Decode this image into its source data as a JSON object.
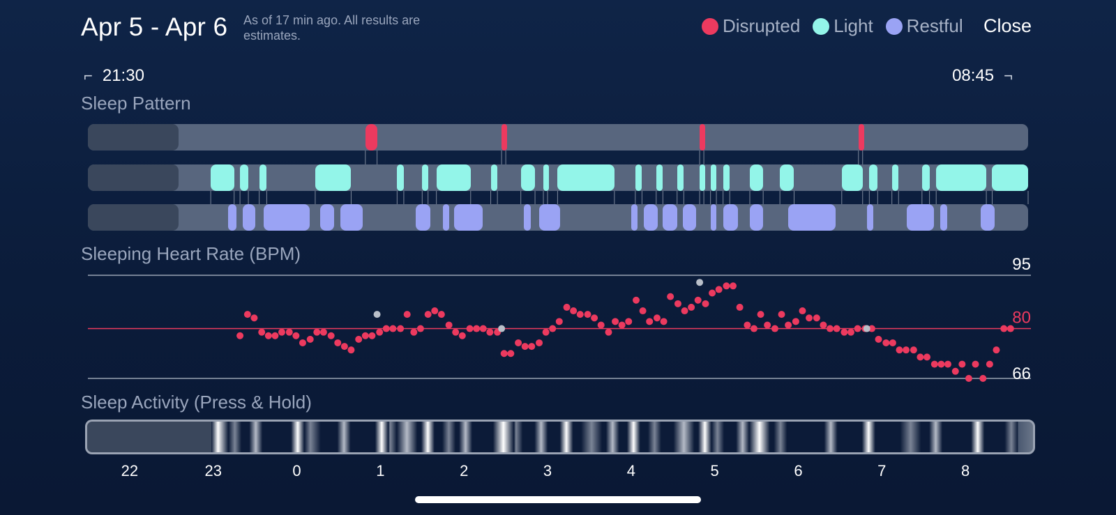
{
  "header": {
    "title": "Apr 5 - Apr 6",
    "subtitle": "As of 17 min ago. All results are estimates.",
    "close_label": "Close"
  },
  "legend": [
    {
      "label": "Disrupted",
      "color": "#ec3a5f"
    },
    {
      "label": "Light",
      "color": "#93f5e9"
    },
    {
      "label": "Restful",
      "color": "#9aa3f4"
    }
  ],
  "time_range": {
    "start": "21:30",
    "end": "08:45",
    "start_icon": "bracket-start-icon",
    "end_icon": "bracket-end-icon"
  },
  "sections": {
    "sleep_pattern": "Sleep Pattern",
    "heart_rate": "Sleeping Heart Rate (BPM)",
    "activity": "Sleep Activity (Press & Hold)"
  },
  "colors": {
    "disrupted": "#ec3a5f",
    "light": "#93f5e9",
    "restful": "#9aa3f4",
    "track": "#58667e",
    "track_pre": "#3a475c"
  },
  "sleep_pattern": {
    "axis_hours": [
      21.5,
      8.75
    ],
    "tracking_start_hour": 22.97,
    "disrupted": [
      [
        0.82,
        0.96
      ],
      [
        2.45,
        2.5
      ],
      [
        4.82,
        4.87
      ],
      [
        6.72,
        6.77
      ]
    ],
    "light": [
      [
        22.97,
        23.25
      ],
      [
        23.32,
        23.42
      ],
      [
        23.55,
        23.64
      ],
      [
        0.22,
        0.65
      ],
      [
        1.2,
        1.28
      ],
      [
        1.5,
        1.57
      ],
      [
        1.67,
        2.08
      ],
      [
        2.32,
        2.4
      ],
      [
        2.68,
        2.85
      ],
      [
        2.95,
        3.0
      ],
      [
        3.12,
        3.8
      ],
      [
        4.05,
        4.13
      ],
      [
        4.3,
        4.38
      ],
      [
        4.55,
        4.63
      ],
      [
        4.82,
        4.87
      ],
      [
        4.95,
        5.02
      ],
      [
        5.1,
        5.18
      ],
      [
        5.42,
        5.58
      ],
      [
        5.78,
        5.95
      ],
      [
        6.52,
        6.77
      ],
      [
        6.85,
        6.95
      ],
      [
        7.12,
        7.2
      ],
      [
        7.48,
        7.57
      ],
      [
        7.65,
        8.25
      ],
      [
        8.32,
        8.75
      ]
    ],
    "restful": [
      [
        23.18,
        23.28
      ],
      [
        23.35,
        23.5
      ],
      [
        23.6,
        24.15
      ],
      [
        0.28,
        0.45
      ],
      [
        0.52,
        0.79
      ],
      [
        1.42,
        1.6
      ],
      [
        1.75,
        1.82
      ],
      [
        1.88,
        2.22
      ],
      [
        2.72,
        2.8
      ],
      [
        2.9,
        3.15
      ],
      [
        4.0,
        4.08
      ],
      [
        4.15,
        4.32
      ],
      [
        4.38,
        4.55
      ],
      [
        4.62,
        4.78
      ],
      [
        4.95,
        5.02
      ],
      [
        5.1,
        5.28
      ],
      [
        5.42,
        5.58
      ],
      [
        5.88,
        6.45
      ],
      [
        6.82,
        6.9
      ],
      [
        7.3,
        7.62
      ],
      [
        7.7,
        7.78
      ],
      [
        8.18,
        8.35
      ]
    ]
  },
  "chart_data": {
    "type": "scatter",
    "title": "Sleeping Heart Rate (BPM)",
    "ylabel": "",
    "ylim": [
      66,
      95
    ],
    "reference_lines": [
      {
        "label": "95",
        "value": 95,
        "color": "#9aa3b3"
      },
      {
        "label": "80",
        "value": 80,
        "color": "#ec3a5f"
      },
      {
        "label": "66",
        "value": 66,
        "color": "#9aa3b3"
      }
    ],
    "xlim": [
      21.5,
      8.75
    ],
    "x": [
      23.32,
      23.41,
      23.49,
      23.58,
      23.66,
      23.74,
      23.82,
      23.91,
      23.99,
      24.07,
      24.16,
      24.24,
      24.32,
      24.41,
      24.49,
      24.57,
      24.65,
      24.74,
      24.82,
      24.9,
      24.99,
      25.07,
      25.15,
      25.24,
      25.32,
      25.4,
      25.48,
      25.57,
      25.65,
      25.73,
      25.82,
      25.9,
      25.98,
      26.07,
      26.15,
      26.23,
      26.31,
      26.4,
      26.48,
      26.56,
      26.65,
      26.73,
      26.81,
      26.9,
      26.98,
      27.06,
      27.14,
      27.23,
      27.31,
      27.39,
      27.48,
      27.56,
      27.64,
      27.73,
      27.81,
      27.89,
      27.97,
      28.06,
      28.14,
      28.22,
      28.31,
      28.39,
      28.47,
      28.56,
      28.64,
      28.72,
      28.8,
      28.89,
      28.97,
      29.05,
      29.14,
      29.22,
      29.3,
      29.39,
      29.47,
      29.55,
      29.63,
      29.72,
      29.8,
      29.88,
      29.97,
      30.05,
      30.13,
      30.22,
      30.3,
      30.38,
      30.46,
      30.55,
      30.63,
      30.71,
      30.8,
      30.88,
      30.96,
      31.05,
      31.13,
      31.21,
      31.29,
      31.38,
      31.46,
      31.54,
      31.63,
      31.71,
      31.79,
      31.88,
      31.96,
      32.04,
      32.12,
      32.21,
      32.29,
      32.37,
      32.46,
      32.54
    ],
    "y": [
      78,
      84,
      83,
      79,
      78,
      78,
      79,
      79,
      78,
      76,
      77,
      79,
      79,
      78,
      76,
      75,
      74,
      77,
      78,
      78,
      79,
      80,
      80,
      80,
      84,
      79,
      80,
      84,
      85,
      84,
      81,
      79,
      78,
      80,
      80,
      80,
      79,
      79,
      73,
      73,
      76,
      75,
      75,
      76,
      79,
      80,
      82,
      86,
      85,
      84,
      84,
      83,
      81,
      79,
      82,
      81,
      82,
      88,
      85,
      82,
      83,
      82,
      89,
      87,
      85,
      86,
      88,
      87,
      90,
      91,
      92,
      92,
      86,
      81,
      80,
      84,
      81,
      80,
      84,
      81,
      82,
      85,
      83,
      83,
      81,
      80,
      80,
      79,
      79,
      80,
      80,
      80,
      77,
      76,
      76,
      74,
      74,
      74,
      72,
      72,
      70,
      70,
      70,
      68,
      70,
      66,
      70,
      66,
      70,
      74,
      80,
      80
    ],
    "highlighted": [
      [
        0.96,
        84
      ],
      [
        2.45,
        80
      ],
      [
        4.82,
        93
      ],
      [
        6.82,
        80
      ]
    ]
  },
  "activity": {
    "tracking_start_hour": 22.97,
    "bright_hours": [
      23.05,
      23.25,
      23.5,
      0.0,
      0.15,
      0.55,
      1.0,
      1.1,
      1.3,
      1.55,
      1.8,
      2.0,
      2.45,
      2.6,
      2.9,
      3.2,
      3.5,
      3.75,
      4.0,
      4.25,
      4.6,
      4.85,
      5.0,
      5.3,
      5.5,
      5.75,
      6.35,
      6.8,
      7.3,
      7.6,
      8.1,
      8.5
    ]
  },
  "x_axis": {
    "ticks": [
      {
        "label": "22",
        "hour": 22
      },
      {
        "label": "23",
        "hour": 23
      },
      {
        "label": "0",
        "hour": 24
      },
      {
        "label": "1",
        "hour": 25
      },
      {
        "label": "2",
        "hour": 26
      },
      {
        "label": "3",
        "hour": 27
      },
      {
        "label": "4",
        "hour": 28
      },
      {
        "label": "5",
        "hour": 29
      },
      {
        "label": "6",
        "hour": 30
      },
      {
        "label": "7",
        "hour": 31
      },
      {
        "label": "8",
        "hour": 32
      }
    ]
  }
}
